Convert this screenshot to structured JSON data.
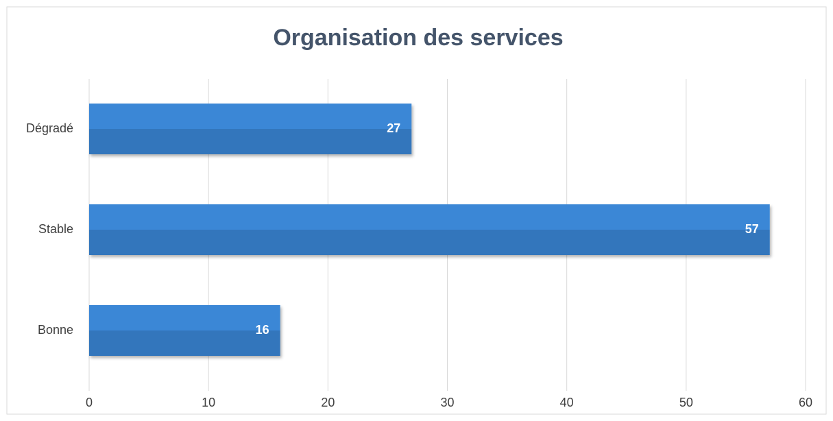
{
  "chart_data": {
    "type": "bar",
    "orientation": "horizontal",
    "title": "Organisation des services",
    "categories": [
      "Dégradé",
      "Stable",
      "Bonne"
    ],
    "values": [
      27,
      57,
      16
    ],
    "color": "#3a87d6",
    "xlim": [
      0,
      60
    ],
    "xticks": [
      0,
      10,
      20,
      30,
      40,
      50,
      60
    ],
    "grid": true
  }
}
